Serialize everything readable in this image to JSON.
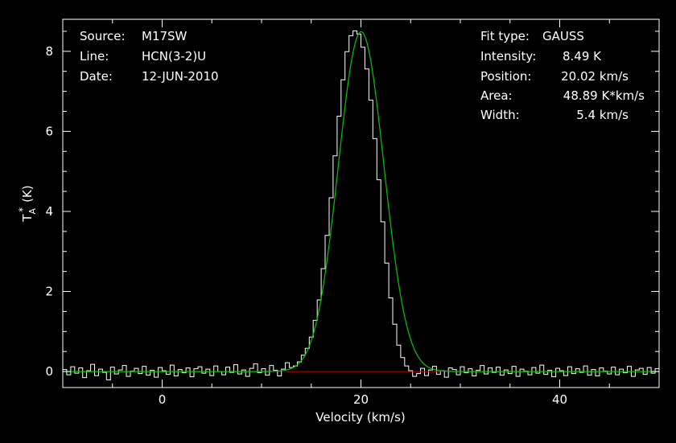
{
  "chart_data": {
    "type": "line",
    "xlabel": "Velocity (km/s)",
    "ylabel": "T",
    "ylabel_sub": "A",
    "ylabel_sup": "*",
    "ylabel_unit": "(K)",
    "xlim": [
      -10,
      50
    ],
    "ylim": [
      -0.4,
      8.8
    ],
    "x_ticks": [
      0,
      20,
      40
    ],
    "y_ticks": [
      0,
      2,
      4,
      6,
      8
    ],
    "x_tick_labels": [
      "0",
      "20",
      "40"
    ],
    "y_tick_labels": [
      "0",
      "2",
      "4",
      "6",
      "8"
    ],
    "grid": false,
    "info_left": [
      {
        "label": "Source:",
        "value": "M17SW"
      },
      {
        "label": "Line:",
        "value": "HCN(3-2)U"
      },
      {
        "label": "Date:",
        "value": "12-JUN-2010"
      }
    ],
    "info_right": [
      {
        "label": "Fit type:",
        "value": "GAUSS"
      },
      {
        "label": "Intensity:",
        "value": "8.49 K"
      },
      {
        "label": "Position:",
        "value": "20.02 km/s"
      },
      {
        "label": "Area:",
        "value": "48.89 K*km/s"
      },
      {
        "label": "Width:",
        "value": "5.4 km/s"
      }
    ],
    "colors": {
      "background": "#000000",
      "axes": "#ffffff",
      "spectrum": "#ffffff",
      "fit": "#00c800",
      "baseline": "#c80000"
    },
    "series": [
      {
        "name": "spectrum",
        "style": "step",
        "x": [
          -10.0,
          -9.6,
          -9.2,
          -8.8,
          -8.4,
          -8.0,
          -7.6,
          -7.2,
          -6.8,
          -6.4,
          -6.0,
          -5.6,
          -5.2,
          -4.8,
          -4.4,
          -4.0,
          -3.6,
          -3.2,
          -2.8,
          -2.4,
          -2.0,
          -1.6,
          -1.2,
          -0.8,
          -0.4,
          0.0,
          0.4,
          0.8,
          1.2,
          1.6,
          2.0,
          2.4,
          2.8,
          3.2,
          3.6,
          4.0,
          4.4,
          4.8,
          5.2,
          5.6,
          6.0,
          6.4,
          6.8,
          7.2,
          7.6,
          8.0,
          8.4,
          8.8,
          9.2,
          9.6,
          10.0,
          10.4,
          10.8,
          11.2,
          11.6,
          12.0,
          12.4,
          12.8,
          13.2,
          13.6,
          14.0,
          14.4,
          14.8,
          15.2,
          15.6,
          16.0,
          16.4,
          16.8,
          17.2,
          17.6,
          18.0,
          18.4,
          18.8,
          19.2,
          19.6,
          20.0,
          20.4,
          20.8,
          21.2,
          21.6,
          22.0,
          22.4,
          22.8,
          23.2,
          23.6,
          24.0,
          24.4,
          24.8,
          25.2,
          25.6,
          26.0,
          26.4,
          26.8,
          27.2,
          27.6,
          28.0,
          28.4,
          28.8,
          29.2,
          29.6,
          30.0,
          30.4,
          30.8,
          31.2,
          31.6,
          32.0,
          32.4,
          32.8,
          33.2,
          33.6,
          34.0,
          34.4,
          34.8,
          35.2,
          35.6,
          36.0,
          36.4,
          36.8,
          37.2,
          37.6,
          38.0,
          38.4,
          38.8,
          39.2,
          39.6,
          40.0,
          40.4,
          40.8,
          41.2,
          41.6,
          42.0,
          42.4,
          42.8,
          43.2,
          43.6,
          44.0,
          44.4,
          44.8,
          45.2,
          45.6,
          46.0,
          46.4,
          46.8,
          47.2,
          47.6,
          48.0,
          48.4,
          48.8,
          49.2,
          49.6
        ],
        "values": [
          0.05,
          -0.08,
          0.12,
          -0.04,
          0.09,
          -0.15,
          0.02,
          0.18,
          -0.1,
          0.06,
          -0.02,
          -0.21,
          0.11,
          -0.06,
          0.04,
          0.15,
          -0.12,
          0.01,
          0.08,
          -0.05,
          0.13,
          -0.09,
          0.03,
          -0.14,
          0.1,
          0.02,
          -0.07,
          0.16,
          -0.11,
          0.05,
          -0.03,
          0.09,
          -0.13,
          0.07,
          0.12,
          -0.04,
          0.06,
          -0.1,
          0.14,
          0.0,
          -0.08,
          0.11,
          -0.02,
          0.17,
          -0.06,
          0.04,
          -0.12,
          0.08,
          0.19,
          -0.03,
          0.07,
          -0.09,
          0.15,
          0.03,
          -0.11,
          0.06,
          0.22,
          0.1,
          0.14,
          0.24,
          0.41,
          0.58,
          0.86,
          1.28,
          1.79,
          2.57,
          3.4,
          4.34,
          5.39,
          6.38,
          7.29,
          7.99,
          8.39,
          8.51,
          8.43,
          8.1,
          7.56,
          6.78,
          5.82,
          4.79,
          3.74,
          2.71,
          1.84,
          1.18,
          0.66,
          0.35,
          0.14,
          0.02,
          -0.12,
          -0.05,
          0.08,
          -0.1,
          0.04,
          0.13,
          -0.07,
          0.02,
          -0.14,
          0.09,
          0.05,
          -0.08,
          0.12,
          -0.03,
          0.07,
          -0.11,
          0.03,
          0.15,
          -0.06,
          0.09,
          -0.02,
          0.11,
          -0.09,
          0.04,
          -0.05,
          0.13,
          -0.12,
          0.06,
          0.01,
          -0.08,
          0.1,
          -0.04,
          0.16,
          -0.07,
          0.03,
          -0.13,
          0.08,
          0.02,
          -0.1,
          0.12,
          -0.05,
          0.07,
          -0.02,
          0.14,
          -0.09,
          0.05,
          -0.11,
          0.09,
          0.01,
          -0.06,
          0.11,
          -0.08,
          0.06,
          -0.03,
          0.13,
          -0.12,
          0.04,
          0.08,
          -0.07,
          0.1,
          -0.04,
          0.07
        ]
      },
      {
        "name": "gaussian-fit",
        "style": "line",
        "amplitude": 8.49,
        "center": 20.02,
        "fwhm": 5.4
      },
      {
        "name": "baseline",
        "style": "line",
        "x": [
          12.5,
          28.0
        ],
        "values": [
          0,
          0
        ]
      }
    ]
  }
}
